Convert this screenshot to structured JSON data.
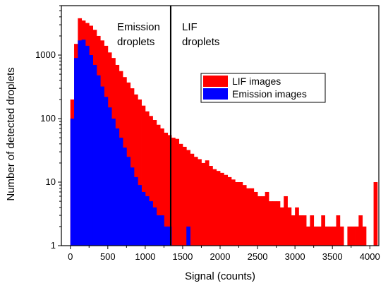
{
  "chart_data": {
    "type": "bar",
    "xlabel": "Signal (counts)",
    "ylabel": "Number of detected droplets",
    "xlim": [
      -120,
      4120
    ],
    "ylim": [
      1,
      6000
    ],
    "y_scale": "log",
    "xticks": [
      0,
      500,
      1000,
      1500,
      2000,
      2500,
      3000,
      3500,
      4000
    ],
    "yticks": [
      1,
      10,
      100,
      1000
    ],
    "ytick_labels": [
      "1",
      "10",
      "100",
      "1000"
    ],
    "bin_width": 50,
    "threshold_line_x": 1340,
    "annotations": [
      {
        "text_lines": [
          "Emission",
          "droplets"
        ],
        "side": "left of threshold"
      },
      {
        "text_lines": [
          "LIF",
          "droplets"
        ],
        "side": "right of threshold"
      }
    ],
    "legend": {
      "placement": "upper-middle-right"
    },
    "grid": false,
    "series": [
      {
        "name": "LIF images",
        "color": "#ff0000",
        "bin_starts": [
          0,
          50,
          100,
          150,
          200,
          250,
          300,
          350,
          400,
          450,
          500,
          550,
          600,
          650,
          700,
          750,
          800,
          850,
          900,
          950,
          1000,
          1050,
          1100,
          1150,
          1200,
          1250,
          1300,
          1350,
          1400,
          1450,
          1500,
          1550,
          1600,
          1650,
          1700,
          1750,
          1800,
          1850,
          1900,
          1950,
          2000,
          2050,
          2100,
          2150,
          2200,
          2250,
          2300,
          2350,
          2400,
          2450,
          2500,
          2550,
          2600,
          2650,
          2700,
          2750,
          2800,
          2850,
          2900,
          2950,
          3000,
          3050,
          3100,
          3150,
          3200,
          3250,
          3300,
          3350,
          3400,
          3450,
          3500,
          3550,
          3600,
          3650,
          3700,
          3750,
          3800,
          3850,
          3900,
          3950,
          4000,
          4050
        ],
        "values": [
          200,
          1500,
          3800,
          3500,
          3200,
          2900,
          2500,
          2000,
          1700,
          1400,
          1100,
          900,
          700,
          560,
          450,
          370,
          300,
          240,
          200,
          160,
          130,
          110,
          95,
          80,
          70,
          60,
          55,
          50,
          48,
          40,
          36,
          32,
          28,
          25,
          23,
          20,
          22,
          18,
          16,
          15,
          14,
          13,
          12,
          11,
          10,
          10,
          9,
          8,
          8,
          7,
          6,
          6,
          7,
          5,
          5,
          5,
          4,
          6,
          4,
          3,
          4,
          3,
          3,
          2,
          3,
          2,
          2,
          3,
          2,
          2,
          2,
          3,
          2,
          1,
          2,
          2,
          2,
          3,
          2,
          1,
          1,
          10
        ]
      },
      {
        "name": "Emission images",
        "color": "#0000ff",
        "bin_starts": [
          0,
          50,
          100,
          150,
          200,
          250,
          300,
          350,
          400,
          450,
          500,
          550,
          600,
          650,
          700,
          750,
          800,
          850,
          900,
          950,
          1000,
          1050,
          1100,
          1150,
          1200,
          1250,
          1300,
          1550
        ],
        "values": [
          100,
          900,
          1700,
          1750,
          1400,
          1000,
          700,
          480,
          320,
          220,
          150,
          100,
          70,
          50,
          35,
          25,
          17,
          12,
          9,
          7,
          6,
          5,
          4,
          3,
          3,
          2,
          2,
          2
        ]
      }
    ]
  }
}
